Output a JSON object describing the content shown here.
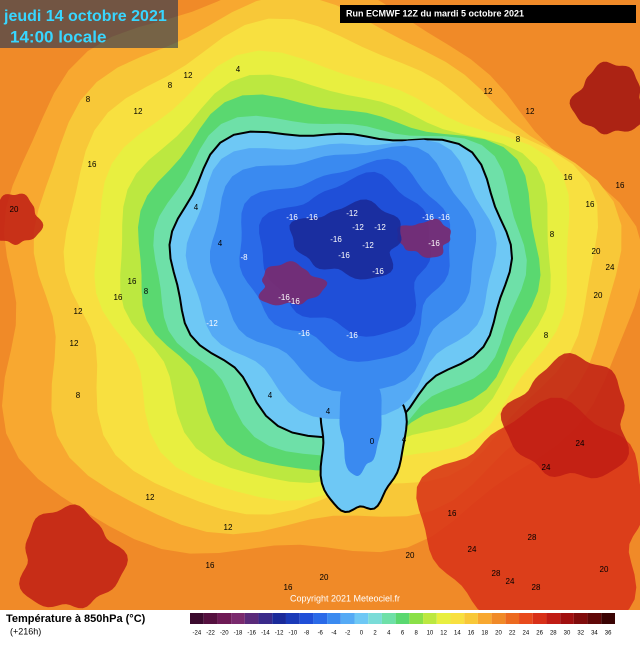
{
  "header": {
    "date": "jeudi 14 octobre 2021",
    "time": "14:00 locale",
    "run": "Run ECMWF 12Z du mardi 5 octobre 2021"
  },
  "legend": {
    "title": "Température à 850hPa (°C)",
    "lead": "(+216h)",
    "copyright": "Copyright 2021 Meteociel.fr"
  },
  "scale": {
    "values": [
      -24,
      -22,
      -20,
      -18,
      -16,
      -14,
      -12,
      -10,
      -8,
      -6,
      -4,
      -2,
      0,
      2,
      4,
      6,
      8,
      10,
      12,
      14,
      16,
      18,
      20,
      22,
      24,
      26,
      28,
      30,
      32,
      34,
      36
    ],
    "colors": [
      "#3b0a2e",
      "#55103f",
      "#6e1a55",
      "#7a2a6e",
      "#5a2a7a",
      "#3a2a8a",
      "#1a2a9a",
      "#1a3ab8",
      "#1f4fd8",
      "#2a6ae8",
      "#3a8af0",
      "#55aaf5",
      "#6ec8f5",
      "#7adcd8",
      "#6ee0a8",
      "#5ad870",
      "#8ae048",
      "#bce840",
      "#e8ef40",
      "#f8e040",
      "#f8c838",
      "#f8a830",
      "#f08a28",
      "#ec6a20",
      "#e84a1c",
      "#d83018",
      "#c01c14",
      "#a01010",
      "#800c0c",
      "#600808",
      "#3a0404"
    ]
  },
  "contour_labels": [
    12,
    4,
    8,
    12,
    8,
    12,
    12,
    8,
    16,
    16,
    20,
    16,
    16,
    8,
    20,
    24,
    20,
    16,
    12,
    8,
    16,
    12,
    8,
    4,
    4,
    -8,
    -16,
    -16,
    -12,
    -12,
    -16,
    -16,
    -12,
    -12,
    -16,
    -16,
    -16,
    -16,
    -16,
    -16,
    -12,
    -16,
    -16,
    4,
    0,
    4,
    4,
    8,
    12,
    16,
    24,
    24,
    20,
    28,
    24,
    20,
    28,
    28,
    24,
    20,
    16,
    16,
    12
  ]
}
